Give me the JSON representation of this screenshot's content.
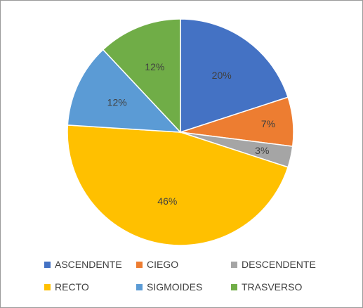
{
  "chart_data": {
    "type": "pie",
    "categories": [
      "ASCENDENTE",
      "CIEGO",
      "DESCENDENTE",
      "RECTO",
      "SIGMOIDES",
      "TRASVERSO"
    ],
    "values": [
      20,
      7,
      3,
      46,
      12,
      12
    ],
    "data_labels": [
      "20%",
      "7%",
      "3%",
      "46%",
      "12%",
      "12%"
    ],
    "plot_order": [
      0,
      1,
      2,
      3,
      4,
      5
    ],
    "colors": [
      "#4472C4",
      "#ED7D31",
      "#A5A5A5",
      "#FFC000",
      "#5B9BD5",
      "#70AD47"
    ],
    "start_angle": "12 o'clock",
    "direction": "clockwise",
    "legend_position": "bottom",
    "legend": [
      {
        "label": "ASCENDENTE",
        "color": "#4472C4"
      },
      {
        "label": "CIEGO",
        "color": "#ED7D31"
      },
      {
        "label": "DESCENDENTE",
        "color": "#A5A5A5"
      },
      {
        "label": "RECTO",
        "color": "#FFC000"
      },
      {
        "label": "SIGMOIDES",
        "color": "#5B9BD5"
      },
      {
        "label": "TRASVERSO",
        "color": "#70AD47"
      }
    ]
  }
}
